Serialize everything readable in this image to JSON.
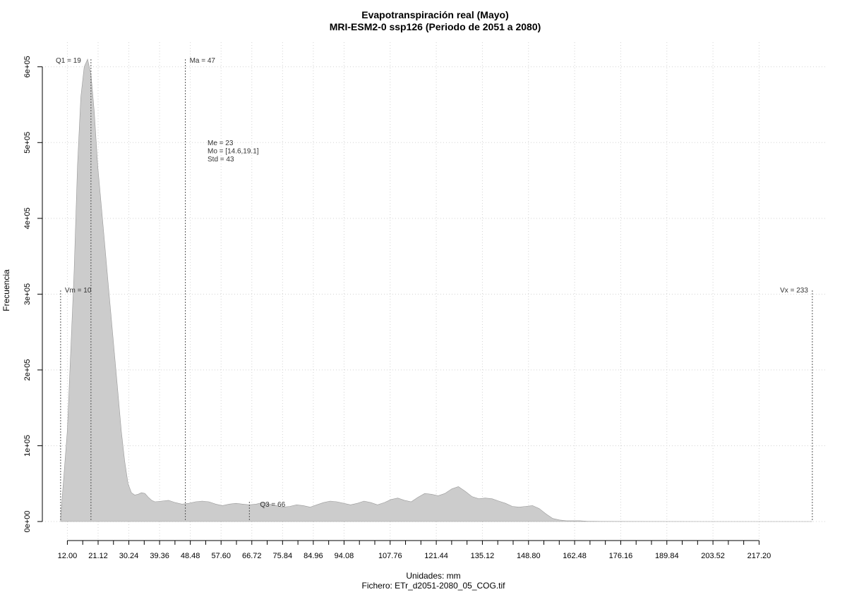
{
  "chart_data": {
    "type": "area",
    "title": "Evapotranspiración real (Mayo)",
    "subtitle": "MRI-ESM2-0 ssp126 (Periodo de 2051 a 2080)",
    "xlabel": "Unidades: mm",
    "file_label": "Fichero: ETr_d2051-2080_05_COG.tif",
    "ylabel": "Frecuencia",
    "xlim": [
      5,
      237
    ],
    "ylim": [
      0,
      610000
    ],
    "x_ticks": [
      "12.00",
      "21.12",
      "30.24",
      "39.36",
      "48.48",
      "57.60",
      "66.72",
      "75.84",
      "84.96",
      "94.08",
      "107.76",
      "121.44",
      "135.12",
      "148.80",
      "162.48",
      "176.16",
      "189.84",
      "203.52",
      "217.20"
    ],
    "y_ticks": [
      "0e+00",
      "1e+05",
      "2e+05",
      "3e+05",
      "4e+05",
      "5e+05",
      "6e+05"
    ],
    "grid": true,
    "fill_color": "#cccccc",
    "stroke_color": "#999999",
    "series": [
      {
        "x": [
          10,
          12,
          14,
          15,
          16,
          17,
          18,
          19,
          20,
          21,
          22,
          23,
          24,
          25,
          26,
          27,
          28,
          29,
          30,
          31,
          32,
          33,
          34,
          35,
          36,
          37,
          38,
          40,
          42,
          44,
          46,
          48,
          50,
          52,
          54,
          56,
          58,
          60,
          62,
          64,
          66,
          68,
          70,
          72,
          74,
          76,
          78,
          80,
          82,
          84,
          86,
          88,
          90,
          92,
          94,
          96,
          98,
          100,
          102,
          104,
          106,
          108,
          110,
          112,
          114,
          116,
          118,
          120,
          122,
          124,
          126,
          128,
          130,
          132,
          134,
          136,
          138,
          140,
          142,
          144,
          146,
          148,
          150,
          152,
          154,
          156,
          158,
          160,
          162,
          164,
          166,
          170,
          180,
          200,
          233
        ],
        "y": [
          5000,
          120000,
          330000,
          470000,
          560000,
          600000,
          610000,
          590000,
          540000,
          470000,
          420000,
          370000,
          320000,
          270000,
          220000,
          170000,
          120000,
          80000,
          50000,
          38000,
          35000,
          36000,
          38000,
          37000,
          32000,
          28000,
          26000,
          27000,
          28000,
          25000,
          23000,
          24000,
          26000,
          27000,
          26000,
          23000,
          21000,
          23000,
          24000,
          23000,
          22000,
          23000,
          25000,
          23000,
          21000,
          19000,
          20000,
          22000,
          21000,
          19000,
          22000,
          25000,
          27000,
          26000,
          24000,
          22000,
          24000,
          27000,
          25000,
          22000,
          25000,
          29000,
          31000,
          28000,
          26000,
          32000,
          37000,
          36000,
          34000,
          37000,
          43000,
          46000,
          40000,
          33000,
          30000,
          31000,
          30000,
          27000,
          24000,
          20000,
          19000,
          20000,
          21000,
          17000,
          10000,
          4000,
          2000,
          1000,
          1000,
          1000,
          500,
          200,
          100,
          0,
          0
        ]
      }
    ],
    "annotations": [
      {
        "label": "Vm = 10",
        "x": 10
      },
      {
        "label": "Q1 = 19",
        "x": 19
      },
      {
        "label": "Ma = 47",
        "x": 47
      },
      {
        "label": "Q3 = 66",
        "x": 66
      },
      {
        "label": "Vx = 233",
        "x": 233
      }
    ],
    "stats": [
      "Me = 23",
      "Mo = [14.6,19.1]",
      "Std = 43"
    ]
  }
}
